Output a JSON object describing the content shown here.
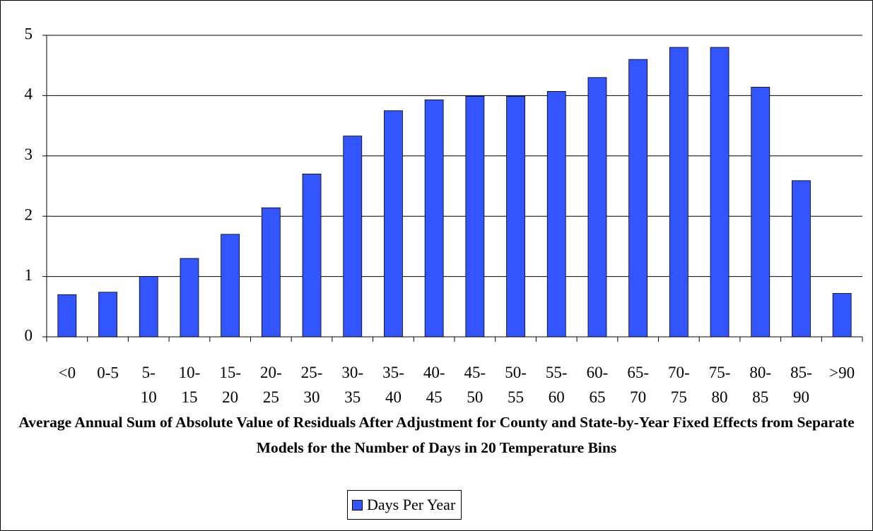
{
  "chart_data": {
    "type": "bar",
    "x_label": "Average Annual Sum of Absolute Value of Residuals After Adjustment for County and State-by-Year Fixed Effects from Separate Models for the Number of Days in 20 Temperature Bins",
    "categories": [
      "<0",
      "0-5",
      "5-10",
      "10-15",
      "15-20",
      "20-25",
      "25-30",
      "30-35",
      "35-40",
      "40-45",
      "45-50",
      "50-55",
      "55-60",
      "60-65",
      "65-70",
      "70-75",
      "75-80",
      "80-85",
      "85-90",
      ">90"
    ],
    "series": [
      {
        "name": "Days Per Year",
        "color": "#3355ff",
        "values": [
          0.7,
          0.74,
          1.0,
          1.3,
          1.7,
          2.14,
          2.7,
          3.33,
          3.75,
          3.93,
          3.99,
          3.99,
          4.07,
          4.3,
          4.6,
          4.8,
          4.8,
          4.14,
          2.59,
          0.72
        ]
      }
    ],
    "ylim": [
      0,
      5
    ],
    "yticks": [
      0,
      1,
      2,
      3,
      4,
      5
    ],
    "grid": true
  }
}
